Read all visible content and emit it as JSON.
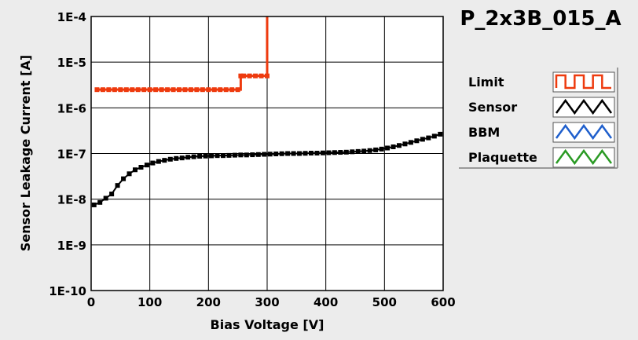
{
  "chart_data": {
    "type": "line",
    "title": "P_2x3B_015_A",
    "xlabel": "Bias Voltage [V]",
    "ylabel": "Sensor Leakage Current [A]",
    "xlim": [
      0,
      600
    ],
    "ylim": [
      1e-10,
      0.0001
    ],
    "y_scale": "log",
    "grid": true,
    "legend_position": "right",
    "x_ticks": [
      "0",
      "100",
      "200",
      "300",
      "400",
      "500",
      "600"
    ],
    "y_ticks": [
      "1E-10",
      "1E-9",
      "1E-8",
      "1E-7",
      "1E-6",
      "1E-5",
      "1E-4"
    ],
    "series": [
      {
        "name": "Limit",
        "color": "#ee3a0e",
        "marker": "square",
        "x": [
          10,
          20,
          30,
          40,
          50,
          60,
          70,
          80,
          90,
          100,
          110,
          120,
          130,
          140,
          150,
          160,
          170,
          180,
          190,
          200,
          210,
          220,
          230,
          240,
          250,
          255,
          260,
          270,
          280,
          290,
          300,
          300
        ],
        "y": [
          2.5e-06,
          2.5e-06,
          2.5e-06,
          2.5e-06,
          2.5e-06,
          2.5e-06,
          2.5e-06,
          2.5e-06,
          2.5e-06,
          2.5e-06,
          2.5e-06,
          2.5e-06,
          2.5e-06,
          2.5e-06,
          2.5e-06,
          2.5e-06,
          2.5e-06,
          2.5e-06,
          2.5e-06,
          2.5e-06,
          2.5e-06,
          2.5e-06,
          2.5e-06,
          2.5e-06,
          2.5e-06,
          5e-06,
          5e-06,
          5e-06,
          5e-06,
          5e-06,
          5e-06,
          0.0001
        ]
      },
      {
        "name": "Sensor",
        "color": "#000000",
        "marker": "square",
        "x": [
          5,
          15,
          25,
          35,
          45,
          55,
          65,
          75,
          85,
          95,
          105,
          115,
          125,
          135,
          145,
          155,
          165,
          175,
          185,
          195,
          205,
          215,
          225,
          235,
          245,
          255,
          265,
          275,
          285,
          295,
          305,
          315,
          325,
          335,
          345,
          355,
          365,
          375,
          385,
          395,
          405,
          415,
          425,
          435,
          445,
          455,
          465,
          475,
          485,
          495,
          505,
          515,
          525,
          535,
          545,
          555,
          565,
          575,
          585,
          595
        ],
        "y": [
          7.5e-09,
          8.5e-09,
          1.05e-08,
          1.3e-08,
          2e-08,
          2.8e-08,
          3.6e-08,
          4.4e-08,
          5e-08,
          5.6e-08,
          6.2e-08,
          6.7e-08,
          7.1e-08,
          7.5e-08,
          7.8e-08,
          8e-08,
          8.3e-08,
          8.5e-08,
          8.7e-08,
          8.8e-08,
          8.9e-08,
          9e-08,
          9e-08,
          9.1e-08,
          9.2e-08,
          9.3e-08,
          9.3e-08,
          9.4e-08,
          9.5e-08,
          9.6e-08,
          9.7e-08,
          9.8e-08,
          9.9e-08,
          1e-07,
          1e-07,
          1e-07,
          1.01e-07,
          1.02e-07,
          1.02e-07,
          1.03e-07,
          1.04e-07,
          1.05e-07,
          1.06e-07,
          1.07e-07,
          1.09e-07,
          1.11e-07,
          1.13e-07,
          1.16e-07,
          1.2e-07,
          1.25e-07,
          1.32e-07,
          1.4e-07,
          1.5e-07,
          1.62e-07,
          1.75e-07,
          1.9e-07,
          2.05e-07,
          2.2e-07,
          2.4e-07,
          2.65e-07
        ]
      },
      {
        "name": "BBM",
        "color": "#1f5fcc",
        "marker": "none",
        "x": [],
        "y": []
      },
      {
        "name": "Plaquette",
        "color": "#2a9a24",
        "marker": "none",
        "x": [],
        "y": []
      }
    ]
  }
}
